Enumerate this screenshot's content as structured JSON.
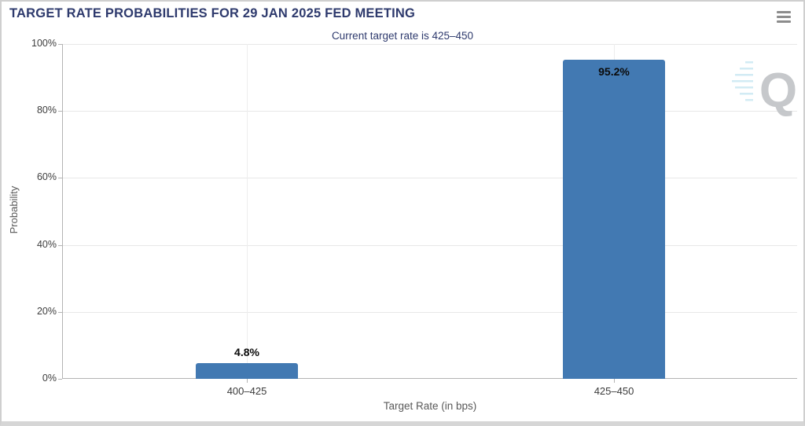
{
  "header": {
    "menu_icon": "hamburger-icon"
  },
  "chart_data": {
    "type": "bar",
    "title": "TARGET RATE PROBABILITIES FOR 29 JAN 2025 FED MEETING",
    "subtitle": "Current target rate is 425–450",
    "categories": [
      "400–425",
      "425–450"
    ],
    "values": [
      4.8,
      95.2
    ],
    "value_labels": [
      "4.8%",
      "95.2%"
    ],
    "xlabel": "Target Rate (in bps)",
    "ylabel": "Probability",
    "ylim": [
      0,
      100
    ],
    "ytick_step": 20,
    "yticks": [
      "0%",
      "20%",
      "40%",
      "60%",
      "80%",
      "100%"
    ],
    "grid": true,
    "legend": false,
    "colors": {
      "bar": "#4279b2",
      "title": "#2e3a6d",
      "gridline": "#e7e7e7",
      "axis": "#b3b3b3"
    }
  },
  "watermark": {
    "letter": "Q",
    "color": "#c0c3c6",
    "lines_color": "#aedcec"
  }
}
